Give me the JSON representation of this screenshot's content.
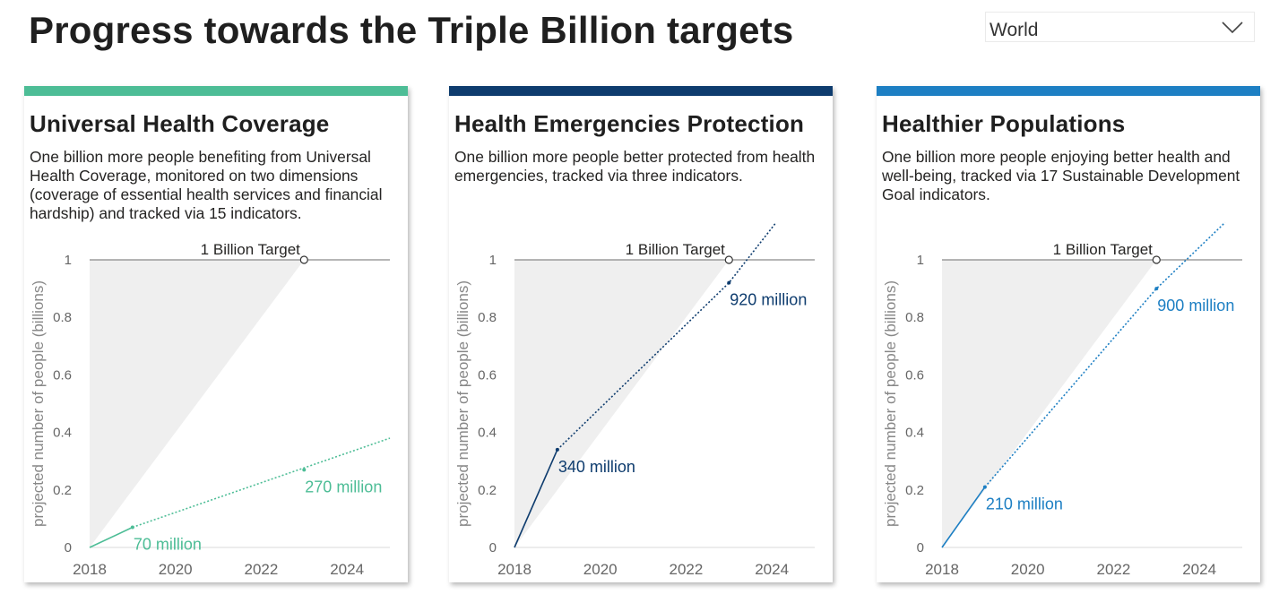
{
  "header": {
    "title": "Progress towards the Triple Billion targets"
  },
  "region_select": {
    "value": "World",
    "icon": "chevron-down-icon"
  },
  "chart_data": [
    {
      "type": "line",
      "title": "Universal Health Coverage",
      "description": "One billion more people benefiting from Universal Health Coverage, monitored on two dimensions (coverage of essential health services and financial hardship) and tracked via 15 indicators.",
      "color": "#4dbd96",
      "ylabel": "projected number of people (billions)",
      "xlim": [
        2018,
        2025
      ],
      "ylim": [
        0,
        1
      ],
      "x_ticks": [
        "2018",
        "2020",
        "2022",
        "2024"
      ],
      "y_ticks": [
        "0",
        "0.2",
        "0.4",
        "0.6",
        "0.8",
        "1"
      ],
      "target": {
        "label": "1 Billion Target",
        "x": 2023,
        "y": 1
      },
      "series": [
        {
          "style": "solid",
          "x": [
            2018,
            2019
          ],
          "y": [
            0,
            0.07
          ]
        },
        {
          "style": "dotted",
          "x": [
            2019,
            2025
          ],
          "y": [
            0.07,
            0.38
          ]
        }
      ],
      "labels": [
        {
          "text": "70 million",
          "x": 2019,
          "y": 0.07
        },
        {
          "text": "270 million",
          "x": 2023,
          "y": 0.27
        }
      ]
    },
    {
      "type": "line",
      "title": "Health Emergencies Protection",
      "description": "One billion more people better protected from health emergencies, tracked via three indicators.",
      "color": "#0e3c6e",
      "ylabel": "projected number of people (billions)",
      "xlim": [
        2018,
        2025
      ],
      "ylim": [
        0,
        1
      ],
      "x_ticks": [
        "2018",
        "2020",
        "2022",
        "2024"
      ],
      "y_ticks": [
        "0",
        "0.2",
        "0.4",
        "0.6",
        "0.8",
        "1"
      ],
      "target": {
        "label": "1 Billion Target",
        "x": 2023,
        "y": 1
      },
      "series": [
        {
          "style": "solid",
          "x": [
            2018,
            2019
          ],
          "y": [
            0,
            0.34
          ]
        },
        {
          "style": "dotted",
          "x": [
            2019,
            2023,
            2024.1
          ],
          "y": [
            0.34,
            0.92,
            1.13
          ]
        }
      ],
      "labels": [
        {
          "text": "340 million",
          "x": 2019,
          "y": 0.34
        },
        {
          "text": "920 million",
          "x": 2023,
          "y": 0.92
        }
      ]
    },
    {
      "type": "line",
      "title": "Healthier Populations",
      "description": "One billion more people enjoying better health and well-being, tracked via 17 Sustainable Development Goal indicators.",
      "color": "#1d7fc3",
      "ylabel": "projected number of people (billions)",
      "xlim": [
        2018,
        2025
      ],
      "ylim": [
        0,
        1
      ],
      "x_ticks": [
        "2018",
        "2020",
        "2022",
        "2024"
      ],
      "y_ticks": [
        "0",
        "0.2",
        "0.4",
        "0.6",
        "0.8",
        "1"
      ],
      "target": {
        "label": "1 Billion Target",
        "x": 2023,
        "y": 1
      },
      "series": [
        {
          "style": "solid",
          "x": [
            2018,
            2019
          ],
          "y": [
            0,
            0.21
          ]
        },
        {
          "style": "dotted",
          "x": [
            2019,
            2023,
            2024.6
          ],
          "y": [
            0.21,
            0.9,
            1.13
          ]
        }
      ],
      "labels": [
        {
          "text": "210 million",
          "x": 2019,
          "y": 0.21
        },
        {
          "text": "900 million",
          "x": 2023,
          "y": 0.9
        }
      ]
    }
  ]
}
